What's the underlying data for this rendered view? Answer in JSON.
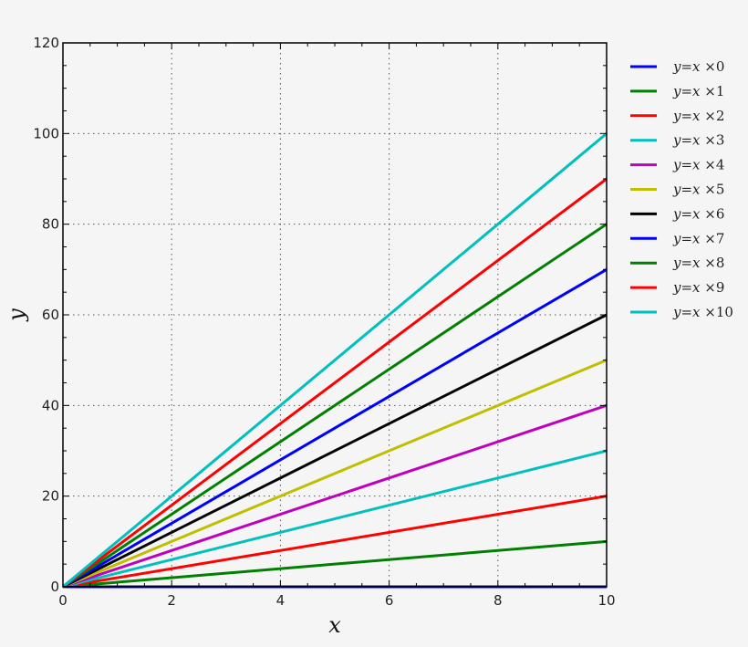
{
  "chart_data": {
    "type": "line",
    "title": "",
    "xlabel": "x",
    "ylabel": "y",
    "xlim": [
      0,
      10
    ],
    "ylim": [
      0,
      120
    ],
    "xticks": [
      0,
      2,
      4,
      6,
      8,
      10
    ],
    "yticks": [
      0,
      20,
      40,
      60,
      80,
      100,
      120
    ],
    "grid": true,
    "legend_position": "outside right, upper",
    "x": [
      0,
      10
    ],
    "series": [
      {
        "name": "y=x ×0",
        "color": "#0000ff",
        "values": [
          0,
          0
        ]
      },
      {
        "name": "y=x ×1",
        "color": "#008000",
        "values": [
          0,
          10
        ]
      },
      {
        "name": "y=x ×2",
        "color": "#ff0000",
        "values": [
          0,
          20
        ]
      },
      {
        "name": "y=x ×3",
        "color": "#00bfbf",
        "values": [
          0,
          30
        ]
      },
      {
        "name": "y=x ×4",
        "color": "#bf00bf",
        "values": [
          0,
          40
        ]
      },
      {
        "name": "y=x ×5",
        "color": "#bfbf00",
        "values": [
          0,
          50
        ]
      },
      {
        "name": "y=x ×6",
        "color": "#000000",
        "values": [
          0,
          60
        ]
      },
      {
        "name": "y=x ×7",
        "color": "#0000ff",
        "values": [
          0,
          70
        ]
      },
      {
        "name": "y=x ×8",
        "color": "#008000",
        "values": [
          0,
          80
        ]
      },
      {
        "name": "y=x ×9",
        "color": "#ff0000",
        "values": [
          0,
          90
        ]
      },
      {
        "name": "y=x ×10",
        "color": "#00bfbf",
        "values": [
          0,
          100
        ]
      }
    ]
  }
}
